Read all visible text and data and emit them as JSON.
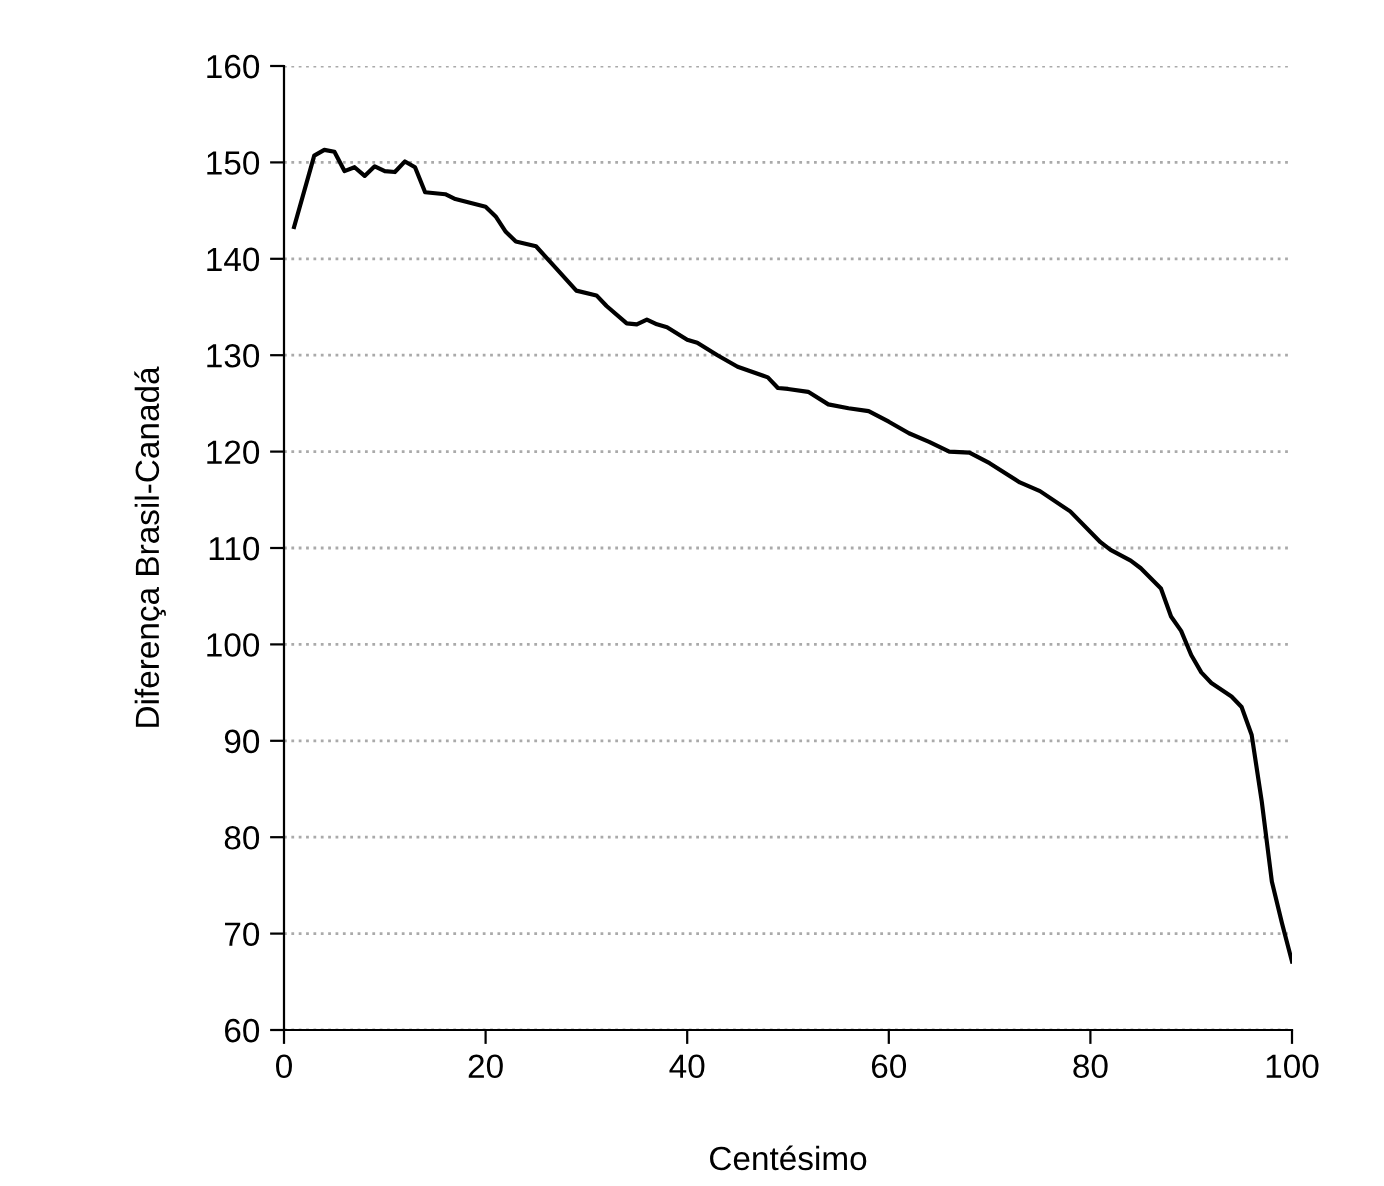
{
  "chart_data": {
    "type": "line",
    "xlabel": "Centésimo",
    "ylabel": "Diferença Brasil-Canadá",
    "x": [
      1,
      3,
      4,
      5,
      6,
      7,
      8,
      9,
      10,
      11,
      12,
      13,
      14,
      16,
      17,
      20,
      21,
      22,
      23,
      25,
      27,
      29,
      31,
      32,
      34,
      35,
      36,
      37,
      38,
      40,
      41,
      43,
      45,
      48,
      49,
      50,
      52,
      54,
      56,
      58,
      60,
      62,
      64,
      66,
      68,
      70,
      73,
      75,
      78,
      81,
      82,
      84,
      85,
      87,
      88,
      89,
      90,
      91,
      92,
      94,
      95,
      96,
      97,
      98,
      99,
      100
    ],
    "series": [
      {
        "color": "#000000",
        "values": [
          143.3,
          150.7,
          151.3,
          151.1,
          149.1,
          149.5,
          148.6,
          149.6,
          149.1,
          149.0,
          150.1,
          149.5,
          146.9,
          146.7,
          146.2,
          145.4,
          144.4,
          142.8,
          141.8,
          141.3,
          139.0,
          136.7,
          136.2,
          135.1,
          133.3,
          133.2,
          133.7,
          133.2,
          132.9,
          131.6,
          131.3,
          130.0,
          128.8,
          127.7,
          126.6,
          126.5,
          126.2,
          124.9,
          124.5,
          124.2,
          123.1,
          121.9,
          121.0,
          120.0,
          119.9,
          118.8,
          116.8,
          115.9,
          113.8,
          110.6,
          109.8,
          108.7,
          107.9,
          105.8,
          102.9,
          101.4,
          98.9,
          97.1,
          96.0,
          94.6,
          93.5,
          90.6,
          83.7,
          75.4,
          71.1,
          67.1
        ]
      }
    ],
    "xlim": [
      0,
      100
    ],
    "ylim": [
      60,
      160
    ],
    "xticks": [
      0,
      20,
      40,
      60,
      80,
      100
    ],
    "yticks": [
      60,
      70,
      80,
      90,
      100,
      110,
      120,
      130,
      140,
      150,
      160
    ],
    "grid": "y",
    "marker": "none",
    "line_style": "solid"
  }
}
